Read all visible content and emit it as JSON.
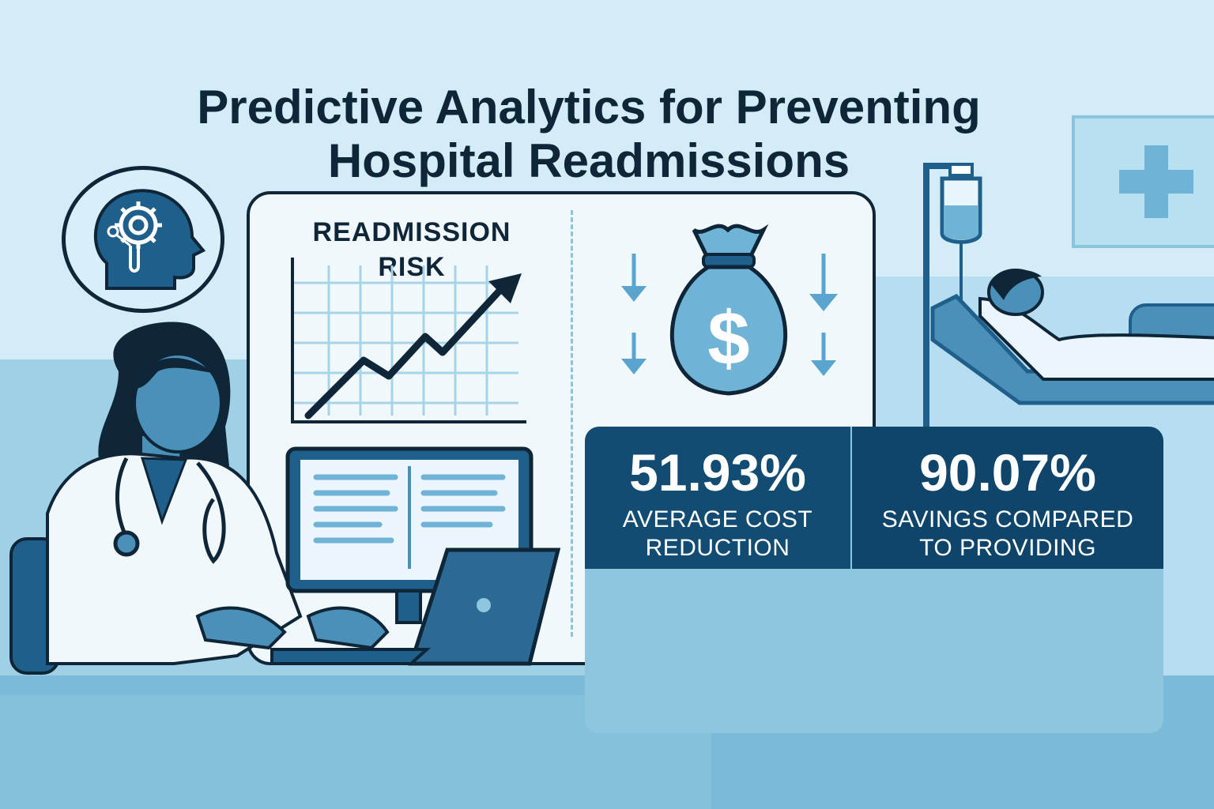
{
  "title": {
    "line1": "Predictive Analytics for Preventing",
    "line2": "Hospital Readmissions"
  },
  "chart": {
    "label_line1": "READMISSION",
    "label_line2": "RISK"
  },
  "stats": [
    {
      "value": "51.93%",
      "label_line1": "AVERAGE COST",
      "label_line2": "REDUCTION"
    },
    {
      "value": "90.07%",
      "label_line1": "SAVINGS COMPARED",
      "label_line2": "TO PROVIDING"
    }
  ],
  "icons": [
    "brain-gear-icon",
    "trend-up-arrow-icon",
    "money-bag-icon",
    "dollar-icon",
    "arrow-down-icon",
    "medical-cross-icon",
    "stethoscope-icon",
    "laptop-icon",
    "monitor-icon",
    "iv-drip-icon",
    "hospital-bed-icon"
  ],
  "colors": {
    "navy": "#0e2637",
    "stat_panel": "#124c72",
    "accent_blue": "#4a90b8",
    "light_bg": "#d3ecf7"
  }
}
